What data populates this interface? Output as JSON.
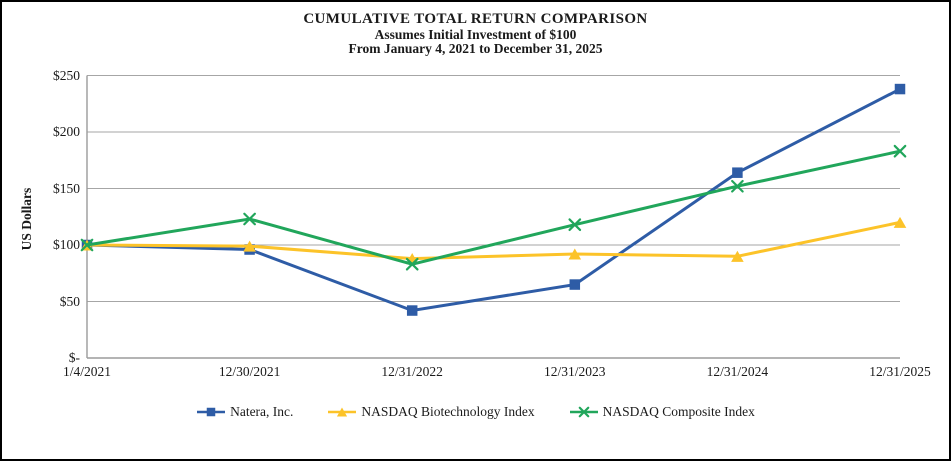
{
  "chart_data": {
    "type": "line",
    "title": "CUMULATIVE TOTAL RETURN COMPARISON",
    "subtitle1": "Assumes Initial Investment of $100",
    "subtitle2": "From January 4, 2021 to December 31, 2025",
    "ylabel": "US Dollars",
    "xlabel": "",
    "x_labels": [
      "1/4/2021",
      "12/30/2021",
      "12/31/2022",
      "12/31/2023",
      "12/31/2024",
      "12/31/2025"
    ],
    "y_ticks": [
      {
        "value": 0,
        "label": "$-"
      },
      {
        "value": 50,
        "label": "$50"
      },
      {
        "value": 100,
        "label": "$100"
      },
      {
        "value": 150,
        "label": "$150"
      },
      {
        "value": 200,
        "label": "$200"
      },
      {
        "value": 250,
        "label": "$250"
      }
    ],
    "ylim": [
      0,
      250
    ],
    "grid": true,
    "legend_position": "bottom",
    "series": [
      {
        "name": "Natera, Inc.",
        "marker": "square",
        "color": "#2E5CA6",
        "values": [
          100,
          96,
          42,
          65,
          164,
          238
        ]
      },
      {
        "name": "NASDAQ Biotechnology Index",
        "marker": "triangle",
        "color": "#FCC329",
        "values": [
          100,
          99,
          88,
          92,
          90,
          120
        ]
      },
      {
        "name": "NASDAQ Composite Index",
        "marker": "x",
        "color": "#21A65B",
        "values": [
          100,
          123,
          83,
          118,
          152,
          183
        ]
      }
    ]
  },
  "colors": {
    "background": "#FFFFFF",
    "border": "#000000",
    "gridline": "#A6A6A6",
    "axis_line": "#9B9B9B",
    "text": "#1A1A1A"
  }
}
